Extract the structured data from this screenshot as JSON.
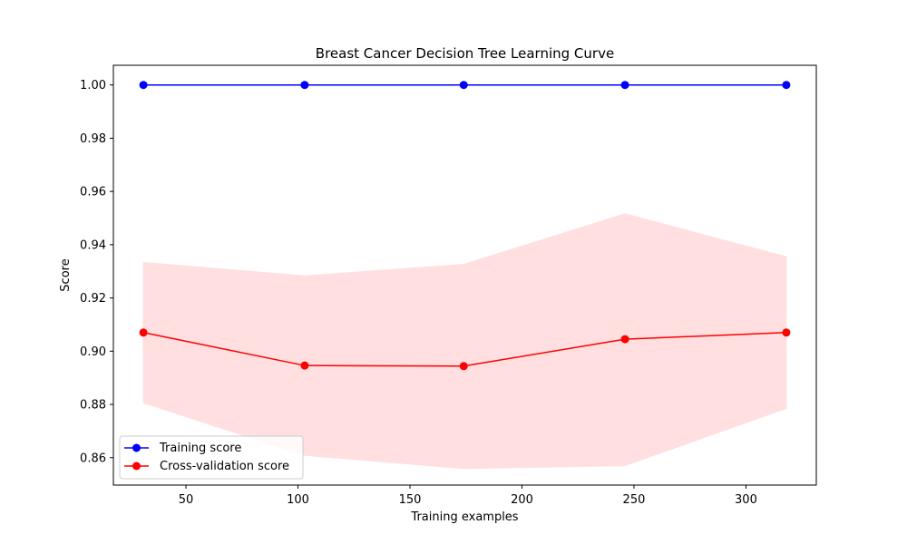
{
  "chart_data": {
    "type": "line",
    "title": "Breast Cancer Decision Tree Learning Curve",
    "xlabel": "Training examples",
    "ylabel": "Score",
    "xlim": [
      17.6,
      331.4
    ],
    "ylim": [
      0.8497,
      1.0074
    ],
    "xticks": [
      50,
      100,
      150,
      200,
      250,
      300
    ],
    "yticks": [
      0.86,
      0.88,
      0.9,
      0.92,
      0.94,
      0.96,
      0.98,
      1.0
    ],
    "xtick_labels": [
      "50",
      "100",
      "150",
      "200",
      "250",
      "300"
    ],
    "ytick_labels": [
      "0.86",
      "0.88",
      "0.90",
      "0.92",
      "0.94",
      "0.96",
      "0.98",
      "1.00"
    ],
    "grid": false,
    "legend_position": "lower-left",
    "x": [
      31,
      103,
      174,
      246,
      318
    ],
    "series": [
      {
        "name": "Training score",
        "color": "#0000ff",
        "marker": "circle",
        "values": [
          1.0,
          1.0,
          1.0,
          1.0,
          1.0
        ],
        "band_lower": [
          1.0,
          1.0,
          1.0,
          1.0,
          1.0
        ],
        "band_upper": [
          1.0,
          1.0,
          1.0,
          1.0,
          1.0
        ]
      },
      {
        "name": "Cross-validation score",
        "color": "#ff0000",
        "marker": "circle",
        "values": [
          0.907,
          0.8946,
          0.8944,
          0.9045,
          0.907
        ],
        "band_lower": [
          0.8806,
          0.8609,
          0.8559,
          0.857,
          0.8785
        ],
        "band_upper": [
          0.9333,
          0.9283,
          0.9326,
          0.9516,
          0.9355
        ],
        "band_color": "#ffdfe0"
      }
    ]
  }
}
